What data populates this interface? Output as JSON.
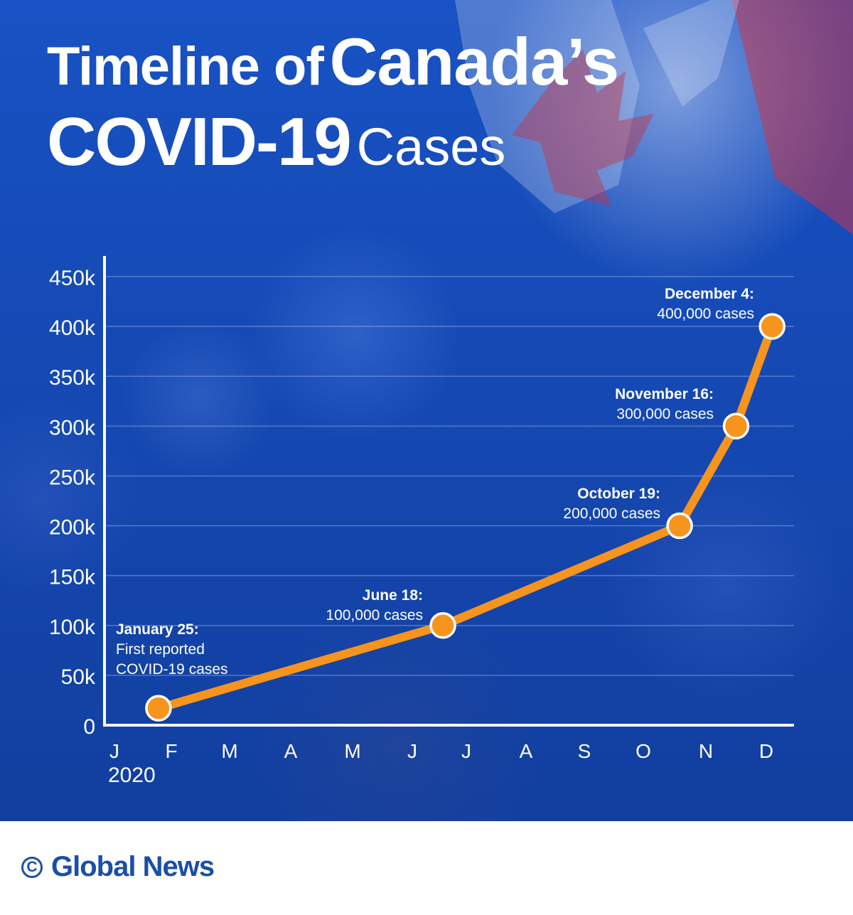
{
  "title": {
    "part1": "Timeline of",
    "part2": "Canada’s",
    "part3": "COVID-19",
    "part4": "Cases"
  },
  "colors": {
    "background": "#1549b4",
    "line": "#f7941d",
    "text": "#ffffff",
    "brand": "#1a4fa8"
  },
  "chart_data": {
    "type": "line",
    "x_tick_labels": [
      "J",
      "F",
      "M",
      "A",
      "M",
      "J",
      "J",
      "A",
      "S",
      "O",
      "N",
      "D"
    ],
    "x_year_label": "2020",
    "ylim": [
      0,
      450000
    ],
    "y_ticks": [
      0,
      50000,
      100000,
      150000,
      200000,
      250000,
      300000,
      350000,
      400000,
      450000
    ],
    "y_tick_labels": [
      "0",
      "50k",
      "100k",
      "150k",
      "200k",
      "250k",
      "300k",
      "350k",
      "400k",
      "450k"
    ],
    "grid": "horizontal",
    "series": [
      {
        "points": [
          {
            "x": "2020-01-25",
            "y": 17000
          },
          {
            "x": "2020-06-18",
            "y": 100000
          },
          {
            "x": "2020-10-19",
            "y": 200000
          },
          {
            "x": "2020-11-16",
            "y": 300000
          },
          {
            "x": "2020-12-04",
            "y": 400000
          }
        ]
      }
    ],
    "annotations": [
      {
        "date": "January 25:",
        "lines": [
          "First reported",
          "COVID-19 cases"
        ]
      },
      {
        "date": "June 18:",
        "lines": [
          "100,000 cases"
        ]
      },
      {
        "date": "October 19:",
        "lines": [
          "200,000 cases"
        ]
      },
      {
        "date": "November 16:",
        "lines": [
          "300,000 cases"
        ]
      },
      {
        "date": "December 4:",
        "lines": [
          "400,000 cases"
        ]
      }
    ]
  },
  "footer": {
    "copyright_symbol": "C",
    "brand": "Global News"
  }
}
